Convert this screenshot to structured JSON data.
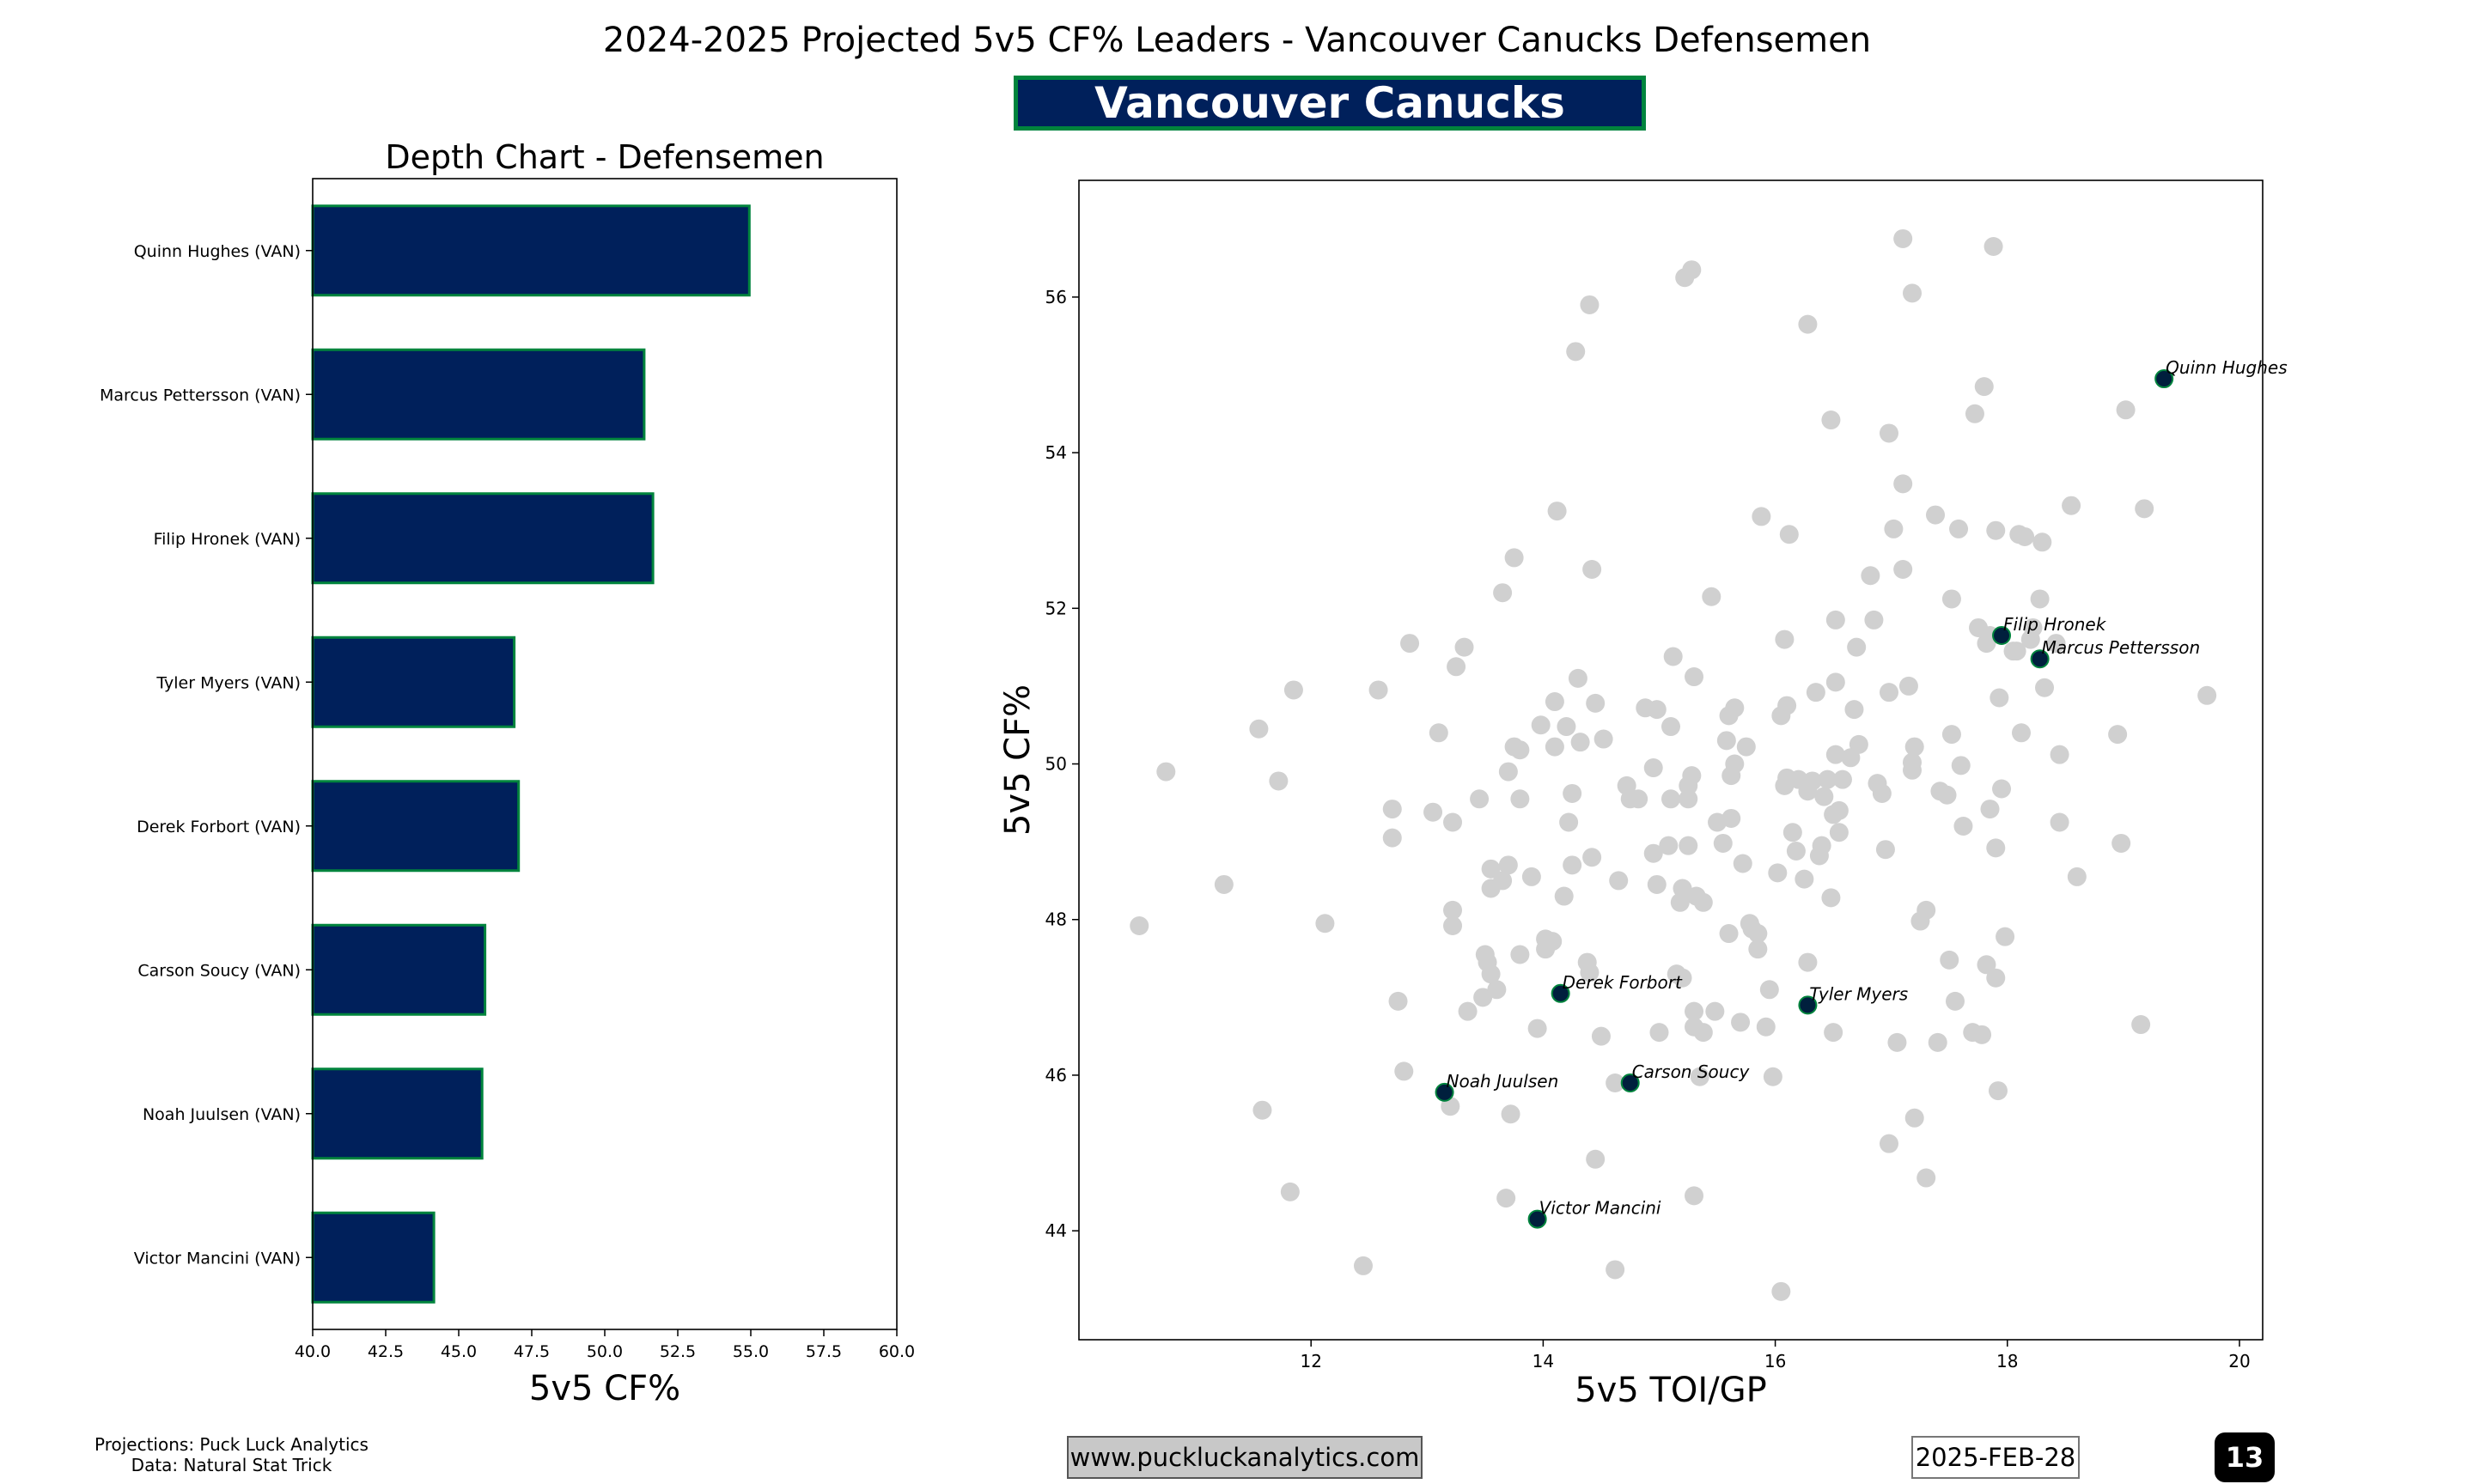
{
  "header": {
    "title": "2024-2025 Projected 5v5 CF% Leaders - Vancouver Canucks Defensemen",
    "team_badge": "Vancouver Canucks"
  },
  "colors": {
    "navy": "#00205b",
    "green": "#00843d",
    "background_points": "#d0d0d0",
    "highlight_point": "#001f3d"
  },
  "chart_data": [
    {
      "type": "bar",
      "orientation": "horizontal",
      "title": "Depth Chart - Defensemen",
      "xlabel": "5v5 CF%",
      "ylabel": "",
      "xlim": [
        40,
        60
      ],
      "x_ticks": [
        "40.0",
        "42.5",
        "45.0",
        "47.5",
        "50.0",
        "52.5",
        "55.0",
        "57.5",
        "60.0"
      ],
      "categories": [
        "Quinn Hughes (VAN)",
        "Marcus Pettersson (VAN)",
        "Filip Hronek (VAN)",
        "Tyler Myers (VAN)",
        "Derek Forbort (VAN)",
        "Carson Soucy (VAN)",
        "Noah Juulsen (VAN)",
        "Victor Mancini (VAN)"
      ],
      "values": [
        54.95,
        51.35,
        51.65,
        46.9,
        47.05,
        45.9,
        45.8,
        44.15
      ]
    },
    {
      "type": "scatter",
      "title": "",
      "xlabel": "5v5 TOI/GP",
      "ylabel": "5v5 CF%",
      "xlim": [
        10.0,
        20.2
      ],
      "ylim": [
        42.6,
        57.5
      ],
      "x_ticks": [
        "12",
        "14",
        "16",
        "18",
        "20"
      ],
      "y_ticks": [
        "44",
        "46",
        "48",
        "50",
        "52",
        "54",
        "56"
      ],
      "highlighted": [
        {
          "label": "Quinn Hughes",
          "x": 19.35,
          "y": 54.95
        },
        {
          "label": "Filip Hronek",
          "x": 17.95,
          "y": 51.65
        },
        {
          "label": "Marcus Pettersson",
          "x": 18.28,
          "y": 51.35
        },
        {
          "label": "Derek Forbort",
          "x": 14.15,
          "y": 47.05
        },
        {
          "label": "Tyler Myers",
          "x": 16.28,
          "y": 46.9
        },
        {
          "label": "Carson Soucy",
          "x": 14.75,
          "y": 45.9
        },
        {
          "label": "Noah Juulsen",
          "x": 13.15,
          "y": 45.78
        },
        {
          "label": "Victor Mancini",
          "x": 13.95,
          "y": 44.15
        }
      ],
      "league_points": [
        [
          10.52,
          47.92
        ],
        [
          10.75,
          49.9
        ],
        [
          11.25,
          48.45
        ],
        [
          11.55,
          50.45
        ],
        [
          11.58,
          45.55
        ],
        [
          11.72,
          49.78
        ],
        [
          11.82,
          44.5
        ],
        [
          11.85,
          50.95
        ],
        [
          12.12,
          47.95
        ],
        [
          12.45,
          43.55
        ],
        [
          12.58,
          50.95
        ],
        [
          12.7,
          49.42
        ],
        [
          12.7,
          49.05
        ],
        [
          12.75,
          46.95
        ],
        [
          12.8,
          46.05
        ],
        [
          12.85,
          51.55
        ],
        [
          13.05,
          49.38
        ],
        [
          13.1,
          50.4
        ],
        [
          13.2,
          45.6
        ],
        [
          13.22,
          48.12
        ],
        [
          13.22,
          47.92
        ],
        [
          13.22,
          49.25
        ],
        [
          13.25,
          51.25
        ],
        [
          13.32,
          51.5
        ],
        [
          13.35,
          46.82
        ],
        [
          13.45,
          49.55
        ],
        [
          13.48,
          47.0
        ],
        [
          13.5,
          47.55
        ],
        [
          13.52,
          47.45
        ],
        [
          13.55,
          48.65
        ],
        [
          13.55,
          48.4
        ],
        [
          13.55,
          47.3
        ],
        [
          13.6,
          47.1
        ],
        [
          13.65,
          48.5
        ],
        [
          13.65,
          52.2
        ],
        [
          13.68,
          44.42
        ],
        [
          13.7,
          48.7
        ],
        [
          13.7,
          49.9
        ],
        [
          13.72,
          45.5
        ],
        [
          13.75,
          52.65
        ],
        [
          13.75,
          50.22
        ],
        [
          13.8,
          50.18
        ],
        [
          13.8,
          47.55
        ],
        [
          13.8,
          49.55
        ],
        [
          13.9,
          48.55
        ],
        [
          13.95,
          46.6
        ],
        [
          13.98,
          50.5
        ],
        [
          14.02,
          47.75
        ],
        [
          14.02,
          47.62
        ],
        [
          14.08,
          47.72
        ],
        [
          14.1,
          50.8
        ],
        [
          14.1,
          50.22
        ],
        [
          14.12,
          53.25
        ],
        [
          14.18,
          48.3
        ],
        [
          14.2,
          50.48
        ],
        [
          14.22,
          49.25
        ],
        [
          14.25,
          49.62
        ],
        [
          14.25,
          48.7
        ],
        [
          14.28,
          55.3
        ],
        [
          14.3,
          51.1
        ],
        [
          14.32,
          50.28
        ],
        [
          14.38,
          47.45
        ],
        [
          14.4,
          47.32
        ],
        [
          14.4,
          55.9
        ],
        [
          14.42,
          48.8
        ],
        [
          14.42,
          52.5
        ],
        [
          14.45,
          50.78
        ],
        [
          14.45,
          44.92
        ],
        [
          14.5,
          46.5
        ],
        [
          14.52,
          50.32
        ],
        [
          14.62,
          45.9
        ],
        [
          14.62,
          43.5
        ],
        [
          14.65,
          48.5
        ],
        [
          14.72,
          49.72
        ],
        [
          14.75,
          49.55
        ],
        [
          14.82,
          49.55
        ],
        [
          14.88,
          50.72
        ],
        [
          14.95,
          48.85
        ],
        [
          14.95,
          49.95
        ],
        [
          14.98,
          50.7
        ],
        [
          14.98,
          48.45
        ],
        [
          15.0,
          46.55
        ],
        [
          15.08,
          48.95
        ],
        [
          15.1,
          49.55
        ],
        [
          15.1,
          50.48
        ],
        [
          15.12,
          51.38
        ],
        [
          15.15,
          47.3
        ],
        [
          15.18,
          48.22
        ],
        [
          15.2,
          48.4
        ],
        [
          15.2,
          47.25
        ],
        [
          15.22,
          56.25
        ],
        [
          15.25,
          48.95
        ],
        [
          15.25,
          49.55
        ],
        [
          15.25,
          49.72
        ],
        [
          15.28,
          49.85
        ],
        [
          15.28,
          56.35
        ],
        [
          15.3,
          51.12
        ],
        [
          15.3,
          46.82
        ],
        [
          15.3,
          46.62
        ],
        [
          15.3,
          44.45
        ],
        [
          15.32,
          48.3
        ],
        [
          15.35,
          45.98
        ],
        [
          15.38,
          48.22
        ],
        [
          15.38,
          46.55
        ],
        [
          15.45,
          52.15
        ],
        [
          15.48,
          46.82
        ],
        [
          15.5,
          49.25
        ],
        [
          15.55,
          48.98
        ],
        [
          15.58,
          50.3
        ],
        [
          15.6,
          47.82
        ],
        [
          15.6,
          50.62
        ],
        [
          15.62,
          49.3
        ],
        [
          15.62,
          49.85
        ],
        [
          15.65,
          50.72
        ],
        [
          15.65,
          50.0
        ],
        [
          15.7,
          46.68
        ],
        [
          15.72,
          48.72
        ],
        [
          15.75,
          50.22
        ],
        [
          15.78,
          47.95
        ],
        [
          15.8,
          47.88
        ],
        [
          15.85,
          47.82
        ],
        [
          15.85,
          47.62
        ],
        [
          15.88,
          53.18
        ],
        [
          15.92,
          46.62
        ],
        [
          15.95,
          47.1
        ],
        [
          15.98,
          45.98
        ],
        [
          16.02,
          48.6
        ],
        [
          16.05,
          50.62
        ],
        [
          16.05,
          43.22
        ],
        [
          16.08,
          51.6
        ],
        [
          16.08,
          49.72
        ],
        [
          16.1,
          49.82
        ],
        [
          16.1,
          50.75
        ],
        [
          16.12,
          52.95
        ],
        [
          16.15,
          49.12
        ],
        [
          16.18,
          48.88
        ],
        [
          16.2,
          49.8
        ],
        [
          16.25,
          48.52
        ],
        [
          16.28,
          55.65
        ],
        [
          16.28,
          47.45
        ],
        [
          16.28,
          49.65
        ],
        [
          16.32,
          49.78
        ],
        [
          16.35,
          50.92
        ],
        [
          16.38,
          48.82
        ],
        [
          16.4,
          48.95
        ],
        [
          16.42,
          49.58
        ],
        [
          16.45,
          49.8
        ],
        [
          16.48,
          54.42
        ],
        [
          16.48,
          48.28
        ],
        [
          16.5,
          49.35
        ],
        [
          16.5,
          46.55
        ],
        [
          16.52,
          51.05
        ],
        [
          16.52,
          50.12
        ],
        [
          16.52,
          51.85
        ],
        [
          16.55,
          49.12
        ],
        [
          16.55,
          49.4
        ],
        [
          16.58,
          49.8
        ],
        [
          16.65,
          50.08
        ],
        [
          16.68,
          50.7
        ],
        [
          16.7,
          51.5
        ],
        [
          16.72,
          50.25
        ],
        [
          16.82,
          52.42
        ],
        [
          16.85,
          51.85
        ],
        [
          16.88,
          49.75
        ],
        [
          16.92,
          49.62
        ],
        [
          16.95,
          48.9
        ],
        [
          16.98,
          50.92
        ],
        [
          16.98,
          54.25
        ],
        [
          16.98,
          45.12
        ],
        [
          17.02,
          53.02
        ],
        [
          17.05,
          46.42
        ],
        [
          17.1,
          56.75
        ],
        [
          17.1,
          53.6
        ],
        [
          17.1,
          52.5
        ],
        [
          17.15,
          51.0
        ],
        [
          17.18,
          50.02
        ],
        [
          17.18,
          56.05
        ],
        [
          17.18,
          49.92
        ],
        [
          17.2,
          50.22
        ],
        [
          17.2,
          45.45
        ],
        [
          17.25,
          47.98
        ],
        [
          17.3,
          48.12
        ],
        [
          17.3,
          44.68
        ],
        [
          17.38,
          53.2
        ],
        [
          17.4,
          46.42
        ],
        [
          17.42,
          49.65
        ],
        [
          17.48,
          49.6
        ],
        [
          17.5,
          47.48
        ],
        [
          17.52,
          52.12
        ],
        [
          17.52,
          50.38
        ],
        [
          17.55,
          46.95
        ],
        [
          17.58,
          53.02
        ],
        [
          17.6,
          49.98
        ],
        [
          17.62,
          49.2
        ],
        [
          17.7,
          46.55
        ],
        [
          17.72,
          54.5
        ],
        [
          17.75,
          51.75
        ],
        [
          17.78,
          46.52
        ],
        [
          17.8,
          54.85
        ],
        [
          17.82,
          51.55
        ],
        [
          17.82,
          47.42
        ],
        [
          17.85,
          49.42
        ],
        [
          17.85,
          51.65
        ],
        [
          17.88,
          56.65
        ],
        [
          17.9,
          53.0
        ],
        [
          17.9,
          47.25
        ],
        [
          17.9,
          48.92
        ],
        [
          17.92,
          45.8
        ],
        [
          17.93,
          50.85
        ],
        [
          17.95,
          49.68
        ],
        [
          17.98,
          47.78
        ],
        [
          18.05,
          51.45
        ],
        [
          18.08,
          51.45
        ],
        [
          18.1,
          52.95
        ],
        [
          18.12,
          50.4
        ],
        [
          18.15,
          52.92
        ],
        [
          18.2,
          51.6
        ],
        [
          18.22,
          51.75
        ],
        [
          18.28,
          52.12
        ],
        [
          18.3,
          52.85
        ],
        [
          18.32,
          50.98
        ],
        [
          18.42,
          51.55
        ],
        [
          18.45,
          50.12
        ],
        [
          18.45,
          49.25
        ],
        [
          18.55,
          53.32
        ],
        [
          18.6,
          48.55
        ],
        [
          18.95,
          50.38
        ],
        [
          18.98,
          48.98
        ],
        [
          19.02,
          54.55
        ],
        [
          19.18,
          53.28
        ],
        [
          19.15,
          46.65
        ],
        [
          19.72,
          50.88
        ]
      ]
    }
  ],
  "footer": {
    "credits_line1": "Projections: Puck Luck Analytics",
    "credits_line2": "Data: Natural Stat Trick",
    "website": "www.puckluckanalytics.com",
    "date": "2025-FEB-28",
    "page_number": "13"
  }
}
